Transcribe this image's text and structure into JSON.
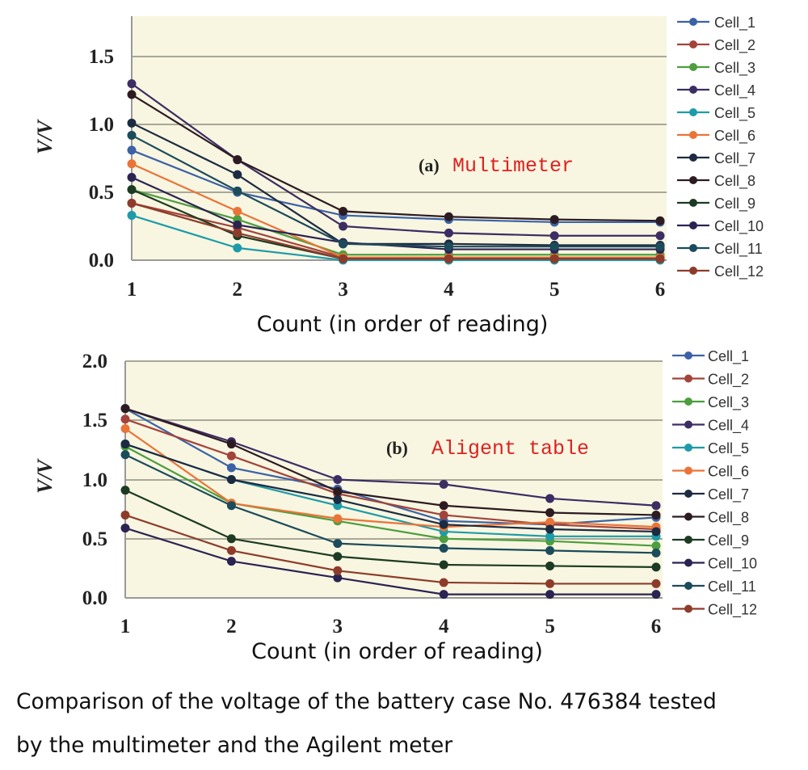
{
  "chart_data": [
    {
      "type": "line",
      "annotation_label": "(a)",
      "annotation_text": "Multimeter",
      "xlabel": "Count (in order of reading)",
      "ylabel": "V/V",
      "x": [
        1,
        2,
        3,
        4,
        5,
        6
      ],
      "x_ticks": [
        "1",
        "2",
        "3",
        "4",
        "5",
        "6"
      ],
      "y_ticks": [
        "0.0",
        "0.5",
        "1.0",
        "1.5"
      ],
      "ylim": [
        0,
        1.8
      ],
      "grid": "horizontal",
      "legend": "right",
      "series": [
        {
          "name": "Cell_1",
          "color": "#3b62a6",
          "values": [
            0.81,
            0.5,
            0.33,
            0.3,
            0.28,
            0.28
          ]
        },
        {
          "name": "Cell_2",
          "color": "#a3433b",
          "values": [
            0.42,
            0.24,
            0.02,
            0.02,
            0.02,
            0.02
          ]
        },
        {
          "name": "Cell_3",
          "color": "#4c9e3e",
          "values": [
            0.52,
            0.3,
            0.04,
            0.04,
            0.04,
            0.04
          ]
        },
        {
          "name": "Cell_4",
          "color": "#3c2d63",
          "values": [
            1.3,
            0.74,
            0.25,
            0.2,
            0.18,
            0.18
          ]
        },
        {
          "name": "Cell_5",
          "color": "#1e9ba8",
          "values": [
            0.33,
            0.09,
            0.0,
            0.0,
            0.0,
            0.0
          ]
        },
        {
          "name": "Cell_6",
          "color": "#ea7437",
          "values": [
            0.71,
            0.36,
            0.02,
            0.02,
            0.02,
            0.02
          ]
        },
        {
          "name": "Cell_7",
          "color": "#1c2b42",
          "values": [
            1.01,
            0.63,
            0.12,
            0.12,
            0.11,
            0.11
          ]
        },
        {
          "name": "Cell_8",
          "color": "#2d1b22",
          "values": [
            1.22,
            0.74,
            0.36,
            0.32,
            0.3,
            0.29
          ]
        },
        {
          "name": "Cell_9",
          "color": "#1d3b22",
          "values": [
            0.52,
            0.18,
            0.01,
            0.01,
            0.01,
            0.01
          ]
        },
        {
          "name": "Cell_10",
          "color": "#2b2352",
          "values": [
            0.61,
            0.26,
            0.13,
            0.08,
            0.08,
            0.08
          ]
        },
        {
          "name": "Cell_11",
          "color": "#1c4b5b",
          "values": [
            0.92,
            0.51,
            0.12,
            0.1,
            0.1,
            0.1
          ]
        },
        {
          "name": "Cell_12",
          "color": "#8d3c2b",
          "values": [
            0.42,
            0.2,
            0.01,
            0.01,
            0.01,
            0.01
          ]
        }
      ]
    },
    {
      "type": "line",
      "annotation_label": "(b)",
      "annotation_text": "Aligent table",
      "xlabel": "Count (in order of reading)",
      "ylabel": "V/V",
      "x": [
        1,
        2,
        3,
        4,
        5,
        6
      ],
      "x_ticks": [
        "1",
        "2",
        "3",
        "4",
        "5",
        "6"
      ],
      "y_ticks": [
        "0.0",
        "0.5",
        "1.0",
        "1.5",
        "2.0"
      ],
      "ylim": [
        0,
        2.0
      ],
      "grid": "horizontal",
      "legend": "right",
      "series": [
        {
          "name": "Cell_1",
          "color": "#3b62a6",
          "values": [
            1.6,
            1.1,
            0.92,
            0.65,
            0.62,
            0.68
          ]
        },
        {
          "name": "Cell_2",
          "color": "#a3433b",
          "values": [
            1.51,
            1.2,
            0.88,
            0.7,
            0.62,
            0.58
          ]
        },
        {
          "name": "Cell_3",
          "color": "#4c9e3e",
          "values": [
            1.28,
            0.8,
            0.65,
            0.5,
            0.48,
            0.44
          ]
        },
        {
          "name": "Cell_4",
          "color": "#3c2d63",
          "values": [
            1.6,
            1.32,
            1.0,
            0.96,
            0.84,
            0.78
          ]
        },
        {
          "name": "Cell_5",
          "color": "#1e9ba8",
          "values": [
            1.3,
            1.0,
            0.78,
            0.56,
            0.52,
            0.52
          ]
        },
        {
          "name": "Cell_6",
          "color": "#ea7437",
          "values": [
            1.43,
            0.8,
            0.67,
            0.6,
            0.64,
            0.6
          ]
        },
        {
          "name": "Cell_7",
          "color": "#1c2b42",
          "values": [
            1.3,
            1.0,
            0.83,
            0.62,
            0.58,
            0.56
          ]
        },
        {
          "name": "Cell_8",
          "color": "#2d1b22",
          "values": [
            1.6,
            1.3,
            0.9,
            0.78,
            0.72,
            0.7
          ]
        },
        {
          "name": "Cell_9",
          "color": "#1d3b22",
          "values": [
            0.91,
            0.5,
            0.35,
            0.28,
            0.27,
            0.26
          ]
        },
        {
          "name": "Cell_10",
          "color": "#2b2352",
          "values": [
            0.59,
            0.31,
            0.17,
            0.03,
            0.03,
            0.03
          ]
        },
        {
          "name": "Cell_11",
          "color": "#1c4b5b",
          "values": [
            1.21,
            0.78,
            0.46,
            0.42,
            0.4,
            0.38
          ]
        },
        {
          "name": "Cell_12",
          "color": "#8d3c2b",
          "values": [
            0.7,
            0.4,
            0.23,
            0.13,
            0.12,
            0.12
          ]
        }
      ]
    }
  ],
  "caption": {
    "line1": "Comparison of the voltage of the battery case No. 476384 tested",
    "line2": "by the multimeter and the Agilent meter"
  },
  "colors": {
    "plot_background": "#f8f6e1",
    "gridline": "#a8a898"
  }
}
